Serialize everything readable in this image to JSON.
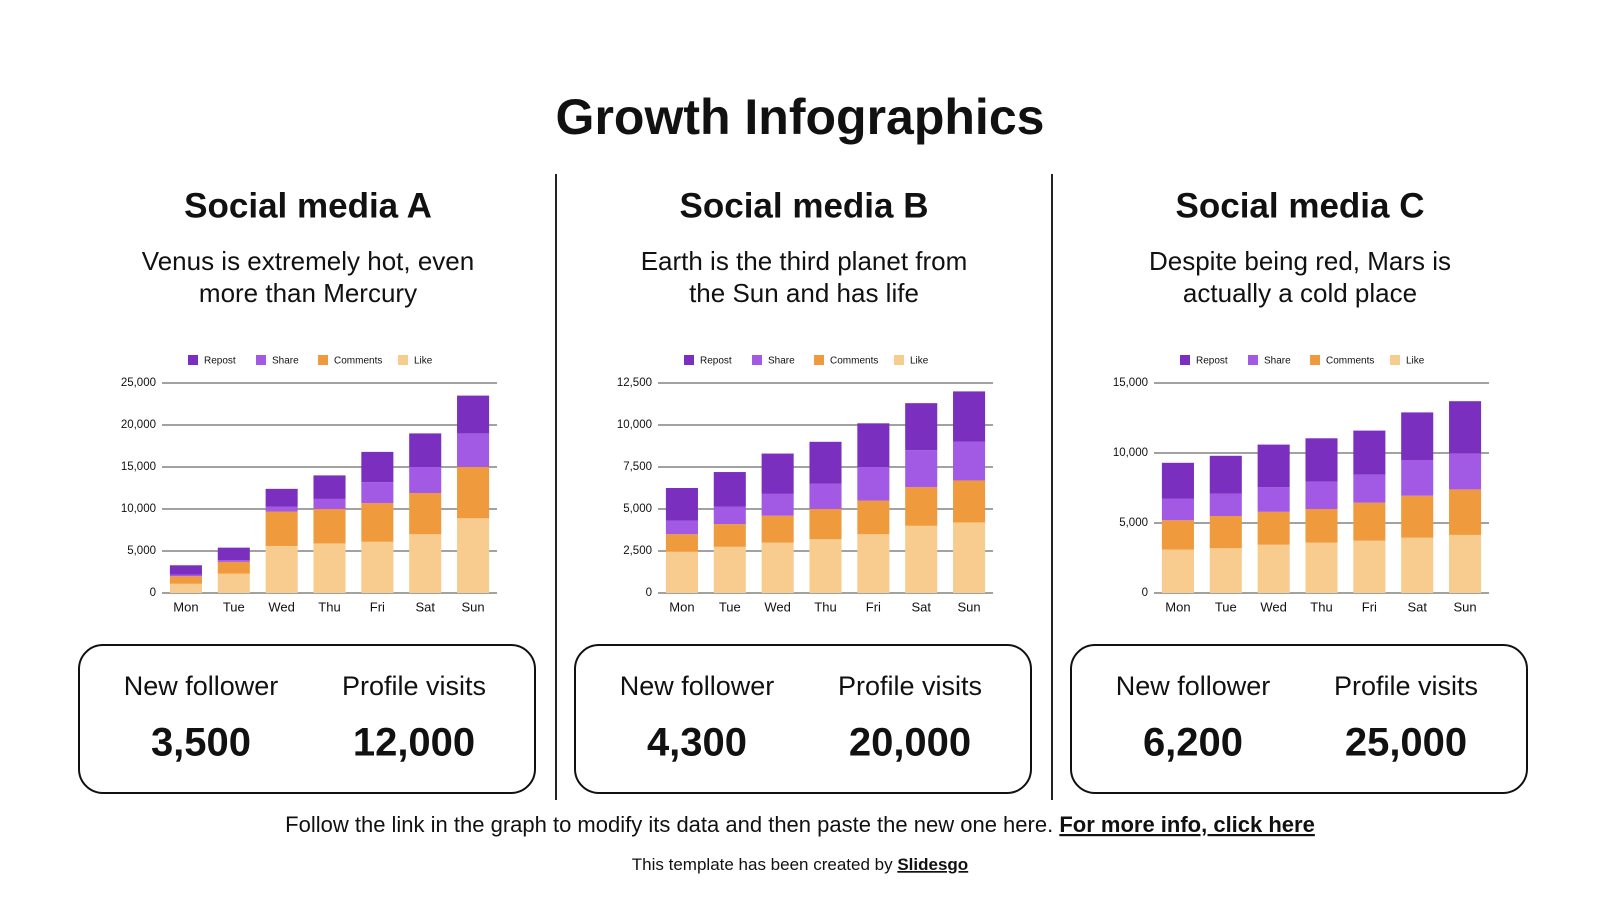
{
  "title": "Growth Infographics",
  "panels": [
    {
      "heading": "Social media A",
      "description": [
        "Venus is extremely hot, even",
        "more than Mercury"
      ],
      "stats": [
        {
          "label": "New follower",
          "value": "3,500"
        },
        {
          "label": "Profile visits",
          "value": "12,000"
        }
      ]
    },
    {
      "heading": "Social media B",
      "description": [
        "Earth is the third planet from",
        "the Sun and has life"
      ],
      "stats": [
        {
          "label": "New follower",
          "value": "4,300"
        },
        {
          "label": "Profile visits",
          "value": "20,000"
        }
      ]
    },
    {
      "heading": "Social media C",
      "description": [
        "Despite being red, Mars is",
        "actually a cold place"
      ],
      "stats": [
        {
          "label": "New follower",
          "value": "6,200"
        },
        {
          "label": "Profile visits",
          "value": "25,000"
        }
      ]
    }
  ],
  "chart_data": [
    {
      "type": "bar",
      "stacked": true,
      "grid": true,
      "categories": [
        "Mon",
        "Tue",
        "Wed",
        "Thu",
        "Fri",
        "Sat",
        "Sun"
      ],
      "series": [
        {
          "name": "Repost",
          "color": "#7b2fbe",
          "values": [
            1100,
            1500,
            2100,
            2800,
            3600,
            4000,
            4500
          ]
        },
        {
          "name": "Share",
          "color": "#a259e3",
          "values": [
            200,
            200,
            600,
            1200,
            2500,
            3100,
            4000
          ]
        },
        {
          "name": "Comments",
          "color": "#f09a3e",
          "values": [
            900,
            1400,
            4100,
            4100,
            4600,
            4900,
            6100
          ]
        },
        {
          "name": "Like",
          "color": "#f8cb8f",
          "values": [
            1100,
            2300,
            5600,
            5900,
            6100,
            7000,
            8900
          ]
        }
      ],
      "ylim": [
        0,
        25000
      ],
      "yticks": [
        0,
        {
          "value": 5000,
          "label": "5,000"
        },
        {
          "value": 10000,
          "label": "10,000"
        },
        {
          "value": 15000,
          "label": "15,000"
        },
        {
          "value": 20000,
          "label": "20,000"
        },
        {
          "value": 25000,
          "label": "25,000"
        }
      ]
    },
    {
      "type": "bar",
      "stacked": true,
      "grid": true,
      "categories": [
        "Mon",
        "Tue",
        "Wed",
        "Thu",
        "Fri",
        "Sat",
        "Sun"
      ],
      "series": [
        {
          "name": "Repost",
          "color": "#7b2fbe",
          "values": [
            1950,
            2050,
            2400,
            2500,
            2600,
            2800,
            3000
          ]
        },
        {
          "name": "Share",
          "color": "#a259e3",
          "values": [
            800,
            1050,
            1300,
            1500,
            2000,
            2200,
            2300
          ]
        },
        {
          "name": "Comments",
          "color": "#f09a3e",
          "values": [
            1050,
            1350,
            1600,
            1800,
            2000,
            2300,
            2500
          ]
        },
        {
          "name": "Like",
          "color": "#f8cb8f",
          "values": [
            2450,
            2750,
            3000,
            3200,
            3500,
            4000,
            4200
          ]
        }
      ],
      "ylim": [
        0,
        12500
      ],
      "yticks": [
        0,
        {
          "value": 2500,
          "label": "2,500"
        },
        {
          "value": 5000,
          "label": "5,000"
        },
        {
          "value": 7500,
          "label": "7,500"
        },
        {
          "value": 10000,
          "label": "10,000"
        },
        {
          "value": 12500,
          "label": "12,500"
        }
      ]
    },
    {
      "type": "bar",
      "stacked": true,
      "grid": true,
      "categories": [
        "Mon",
        "Tue",
        "Wed",
        "Thu",
        "Fri",
        "Sat",
        "Sun"
      ],
      "series": [
        {
          "name": "Repost",
          "color": "#7b2fbe",
          "values": [
            2550,
            2700,
            3050,
            3100,
            3150,
            3400,
            3750
          ]
        },
        {
          "name": "Share",
          "color": "#a259e3",
          "values": [
            1550,
            1600,
            1750,
            1950,
            2000,
            2550,
            2550
          ]
        },
        {
          "name": "Comments",
          "color": "#f09a3e",
          "values": [
            2100,
            2300,
            2350,
            2400,
            2700,
            3000,
            3250
          ]
        },
        {
          "name": "Like",
          "color": "#f8cb8f",
          "values": [
            3100,
            3200,
            3450,
            3600,
            3750,
            3950,
            4150
          ]
        }
      ],
      "ylim": [
        0,
        15000
      ],
      "yticks": [
        0,
        {
          "value": 5000,
          "label": "5,000"
        },
        {
          "value": 10000,
          "label": "10,000"
        },
        {
          "value": 15000,
          "label": "15,000"
        }
      ]
    }
  ],
  "footer": {
    "text": "Follow the link in the graph to modify its data and then paste the new one here.",
    "link": "For more info, click here"
  },
  "credit": {
    "text": "This template has been created by",
    "link": "Slidesgo"
  }
}
